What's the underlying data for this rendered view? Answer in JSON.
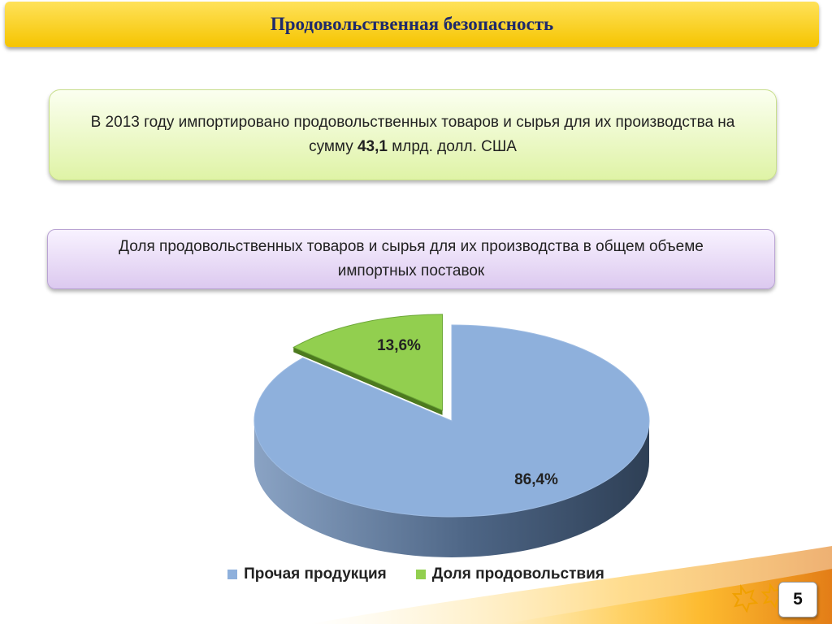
{
  "slide": {
    "title": "Продовольственная безопасность",
    "page_number": "5"
  },
  "info_box": {
    "text_before": "В 2013 году импортировано продовольственных товаров и сырья для их производства на сумму ",
    "highlight": "43,1",
    "text_after": " млрд. долл. США"
  },
  "chart_data": {
    "type": "pie",
    "title": "Доля продовольственных товаров и сырья для их производства в общем объеме импортных поставок",
    "three_d": true,
    "categories": [
      "Прочая продукция",
      "Доля продовольствия"
    ],
    "values": [
      86.4,
      13.6
    ],
    "data_labels": [
      "86,4%",
      "13,6%"
    ],
    "colors": [
      "#8eb0dc",
      "#92cf4f"
    ],
    "exploded": [
      "Доля продовольствия"
    ],
    "legend_position": "bottom"
  },
  "colors": {
    "title_bar": "#f5c400",
    "title_text": "#1f2a6b",
    "info_box": "#dff3a6",
    "chart_title_box": "#dcc9ef"
  }
}
